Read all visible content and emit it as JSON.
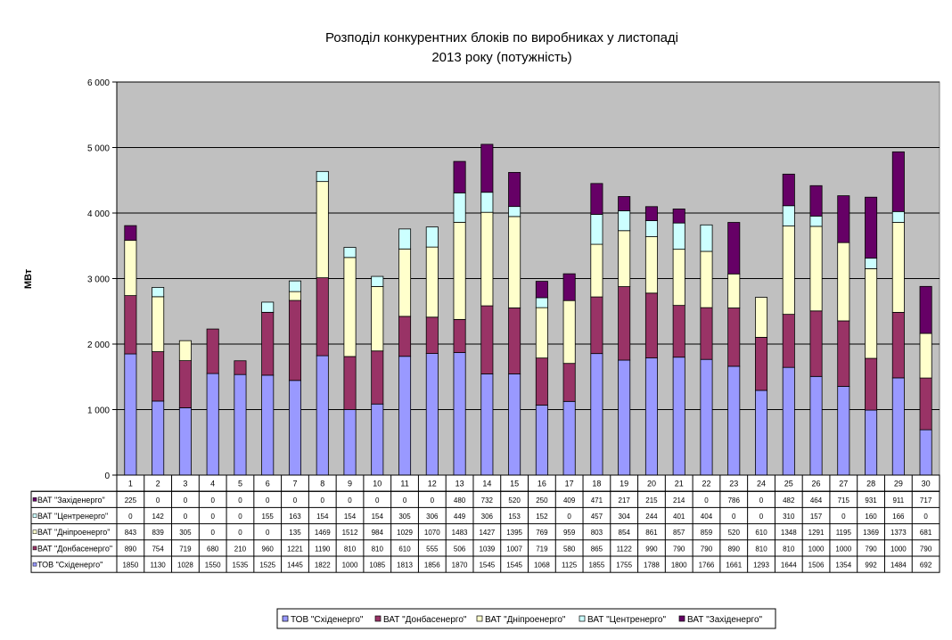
{
  "chart_data": {
    "type": "bar",
    "stacked": true,
    "title_lines": [
      "Розподіл конкурентних блоків по виробниках у листопаді",
      "2013 року (потужність)"
    ],
    "ylabel": "МВт",
    "ylim": [
      0,
      6000
    ],
    "yticks": [
      0,
      1000,
      2000,
      3000,
      4000,
      5000,
      6000
    ],
    "ytick_labels": [
      "0",
      "1 000",
      "2 000",
      "3 000",
      "4 000",
      "5 000",
      "6 000"
    ],
    "grid": true,
    "legend_position": "bottom",
    "categories": [
      "1",
      "2",
      "3",
      "4",
      "5",
      "6",
      "7",
      "8",
      "9",
      "10",
      "11",
      "12",
      "13",
      "14",
      "15",
      "16",
      "17",
      "18",
      "19",
      "20",
      "21",
      "22",
      "23",
      "24",
      "25",
      "26",
      "27",
      "28",
      "29",
      "30"
    ],
    "series": [
      {
        "name": "ТОВ \"Східенерго\"",
        "color": "#9999ff",
        "values": [
          1850,
          1130,
          1028,
          1550,
          1535,
          1525,
          1445,
          1822,
          1000,
          1085,
          1813,
          1856,
          1870,
          1545,
          1545,
          1068,
          1125,
          1855,
          1755,
          1788,
          1800,
          1766,
          1661,
          1293,
          1644,
          1506,
          1354,
          992,
          1484,
          692
        ]
      },
      {
        "name": "ВАТ \"Донбасенерго\"",
        "color": "#993366",
        "values": [
          890,
          754,
          719,
          680,
          210,
          960,
          1221,
          1190,
          810,
          810,
          610,
          555,
          506,
          1039,
          1007,
          719,
          580,
          865,
          1122,
          990,
          790,
          790,
          890,
          810,
          810,
          1000,
          1000,
          790,
          1000,
          790
        ]
      },
      {
        "name": "ВАТ \"Дніпроенерго\"",
        "color": "#ffffcc",
        "values": [
          843,
          839,
          305,
          0,
          0,
          0,
          135,
          1469,
          1512,
          984,
          1029,
          1070,
          1483,
          1427,
          1395,
          769,
          959,
          803,
          854,
          861,
          857,
          859,
          520,
          610,
          1348,
          1291,
          1195,
          1369,
          1373,
          681
        ]
      },
      {
        "name": "ВАТ \"Центренерго\"",
        "color": "#ccffff",
        "values": [
          0,
          142,
          0,
          0,
          0,
          155,
          163,
          154,
          154,
          154,
          305,
          306,
          449,
          306,
          153,
          152,
          0,
          457,
          304,
          244,
          401,
          404,
          0,
          0,
          310,
          157,
          0,
          160,
          166,
          0
        ]
      },
      {
        "name": "ВАТ \"Західенерго\"",
        "color": "#660066",
        "values": [
          225,
          0,
          0,
          0,
          0,
          0,
          0,
          0,
          0,
          0,
          0,
          0,
          480,
          732,
          520,
          250,
          409,
          471,
          217,
          215,
          214,
          0,
          786,
          0,
          482,
          464,
          715,
          931,
          911,
          717
        ]
      }
    ]
  },
  "colors": {
    "plot_background": "#c0c0c0",
    "gridline": "#000000",
    "bar_outline": "#000000"
  }
}
